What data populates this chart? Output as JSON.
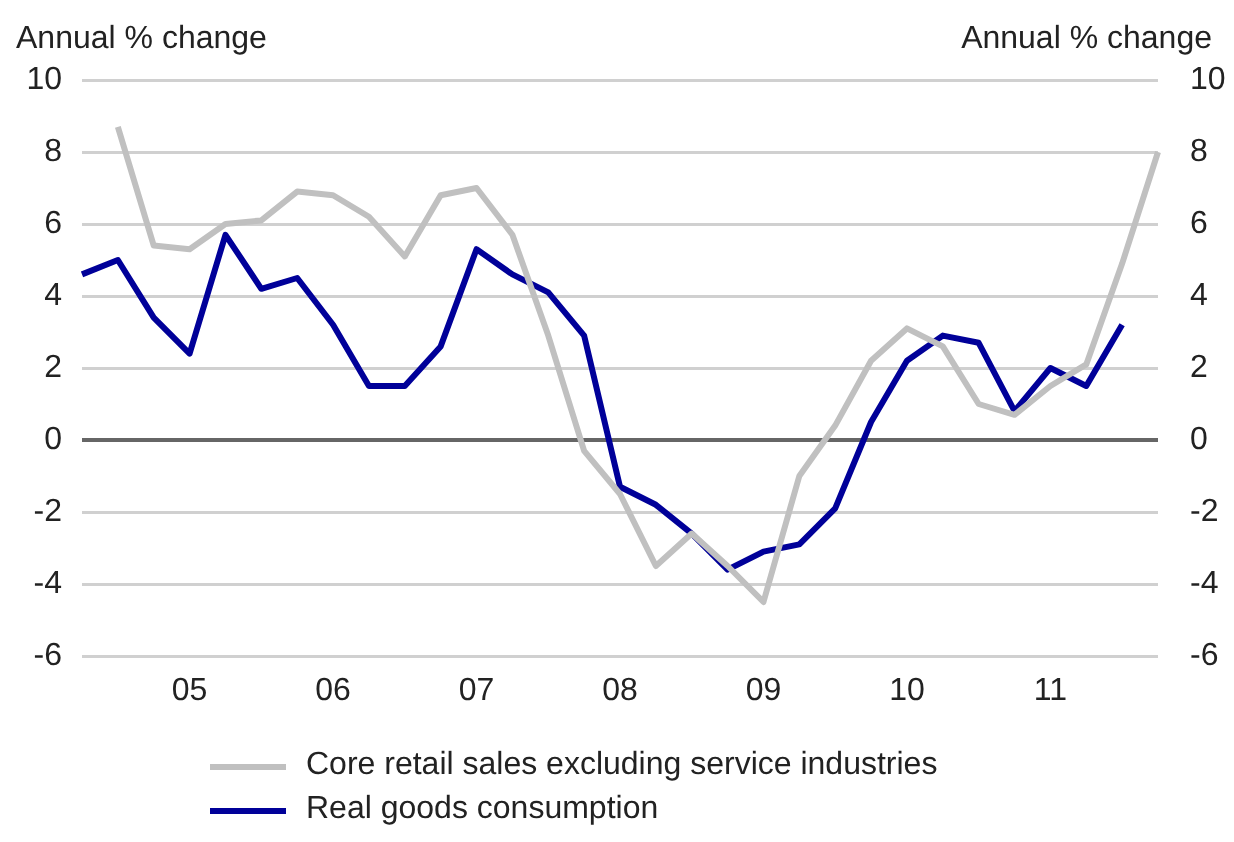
{
  "chart_data": {
    "type": "line",
    "ylabel": "Annual % change",
    "y2label": "Annual % change",
    "categories": [
      null,
      null,
      null,
      "05",
      null,
      null,
      null,
      "06",
      null,
      null,
      null,
      "07",
      null,
      null,
      null,
      "08",
      null,
      null,
      null,
      "09",
      null,
      null,
      null,
      "10",
      null,
      null,
      null,
      "11",
      null,
      null,
      null
    ],
    "series": [
      {
        "name": "Core retail sales excluding service industries",
        "color": "#c0c0c0",
        "values": [
          null,
          8.7,
          5.4,
          5.3,
          6.0,
          6.1,
          6.9,
          6.8,
          6.2,
          5.1,
          6.8,
          7.0,
          5.7,
          2.9,
          -0.3,
          -1.5,
          -3.5,
          -2.6,
          -3.5,
          -4.5,
          -1.0,
          0.4,
          2.2,
          3.1,
          2.6,
          1.0,
          0.7,
          1.5,
          2.1,
          4.9,
          8.0
        ]
      },
      {
        "name": "Real goods consumption",
        "color": "#000099",
        "values": [
          4.6,
          5.0,
          3.4,
          2.4,
          5.7,
          4.2,
          4.5,
          3.2,
          1.5,
          1.5,
          2.6,
          5.3,
          4.6,
          4.1,
          2.9,
          -1.3,
          -1.8,
          -2.6,
          -3.6,
          -3.1,
          -2.9,
          -1.9,
          0.5,
          2.2,
          2.9,
          2.7,
          0.8,
          2.0,
          1.5,
          3.2,
          null
        ]
      }
    ],
    "ylim": [
      -6,
      10
    ],
    "yticks": [
      -6,
      -4,
      -2,
      0,
      2,
      4,
      6,
      8,
      10
    ],
    "y2lim": [
      -6,
      10
    ],
    "y2ticks": [
      -6,
      -4,
      -2,
      0,
      2,
      4,
      6,
      8,
      10
    ],
    "ref_lines": [
      {
        "axis": "y",
        "value": 0,
        "color": "#666666"
      }
    ],
    "grid": "y",
    "legend": "bottom left",
    "line_style": "solid",
    "marker": "none"
  }
}
